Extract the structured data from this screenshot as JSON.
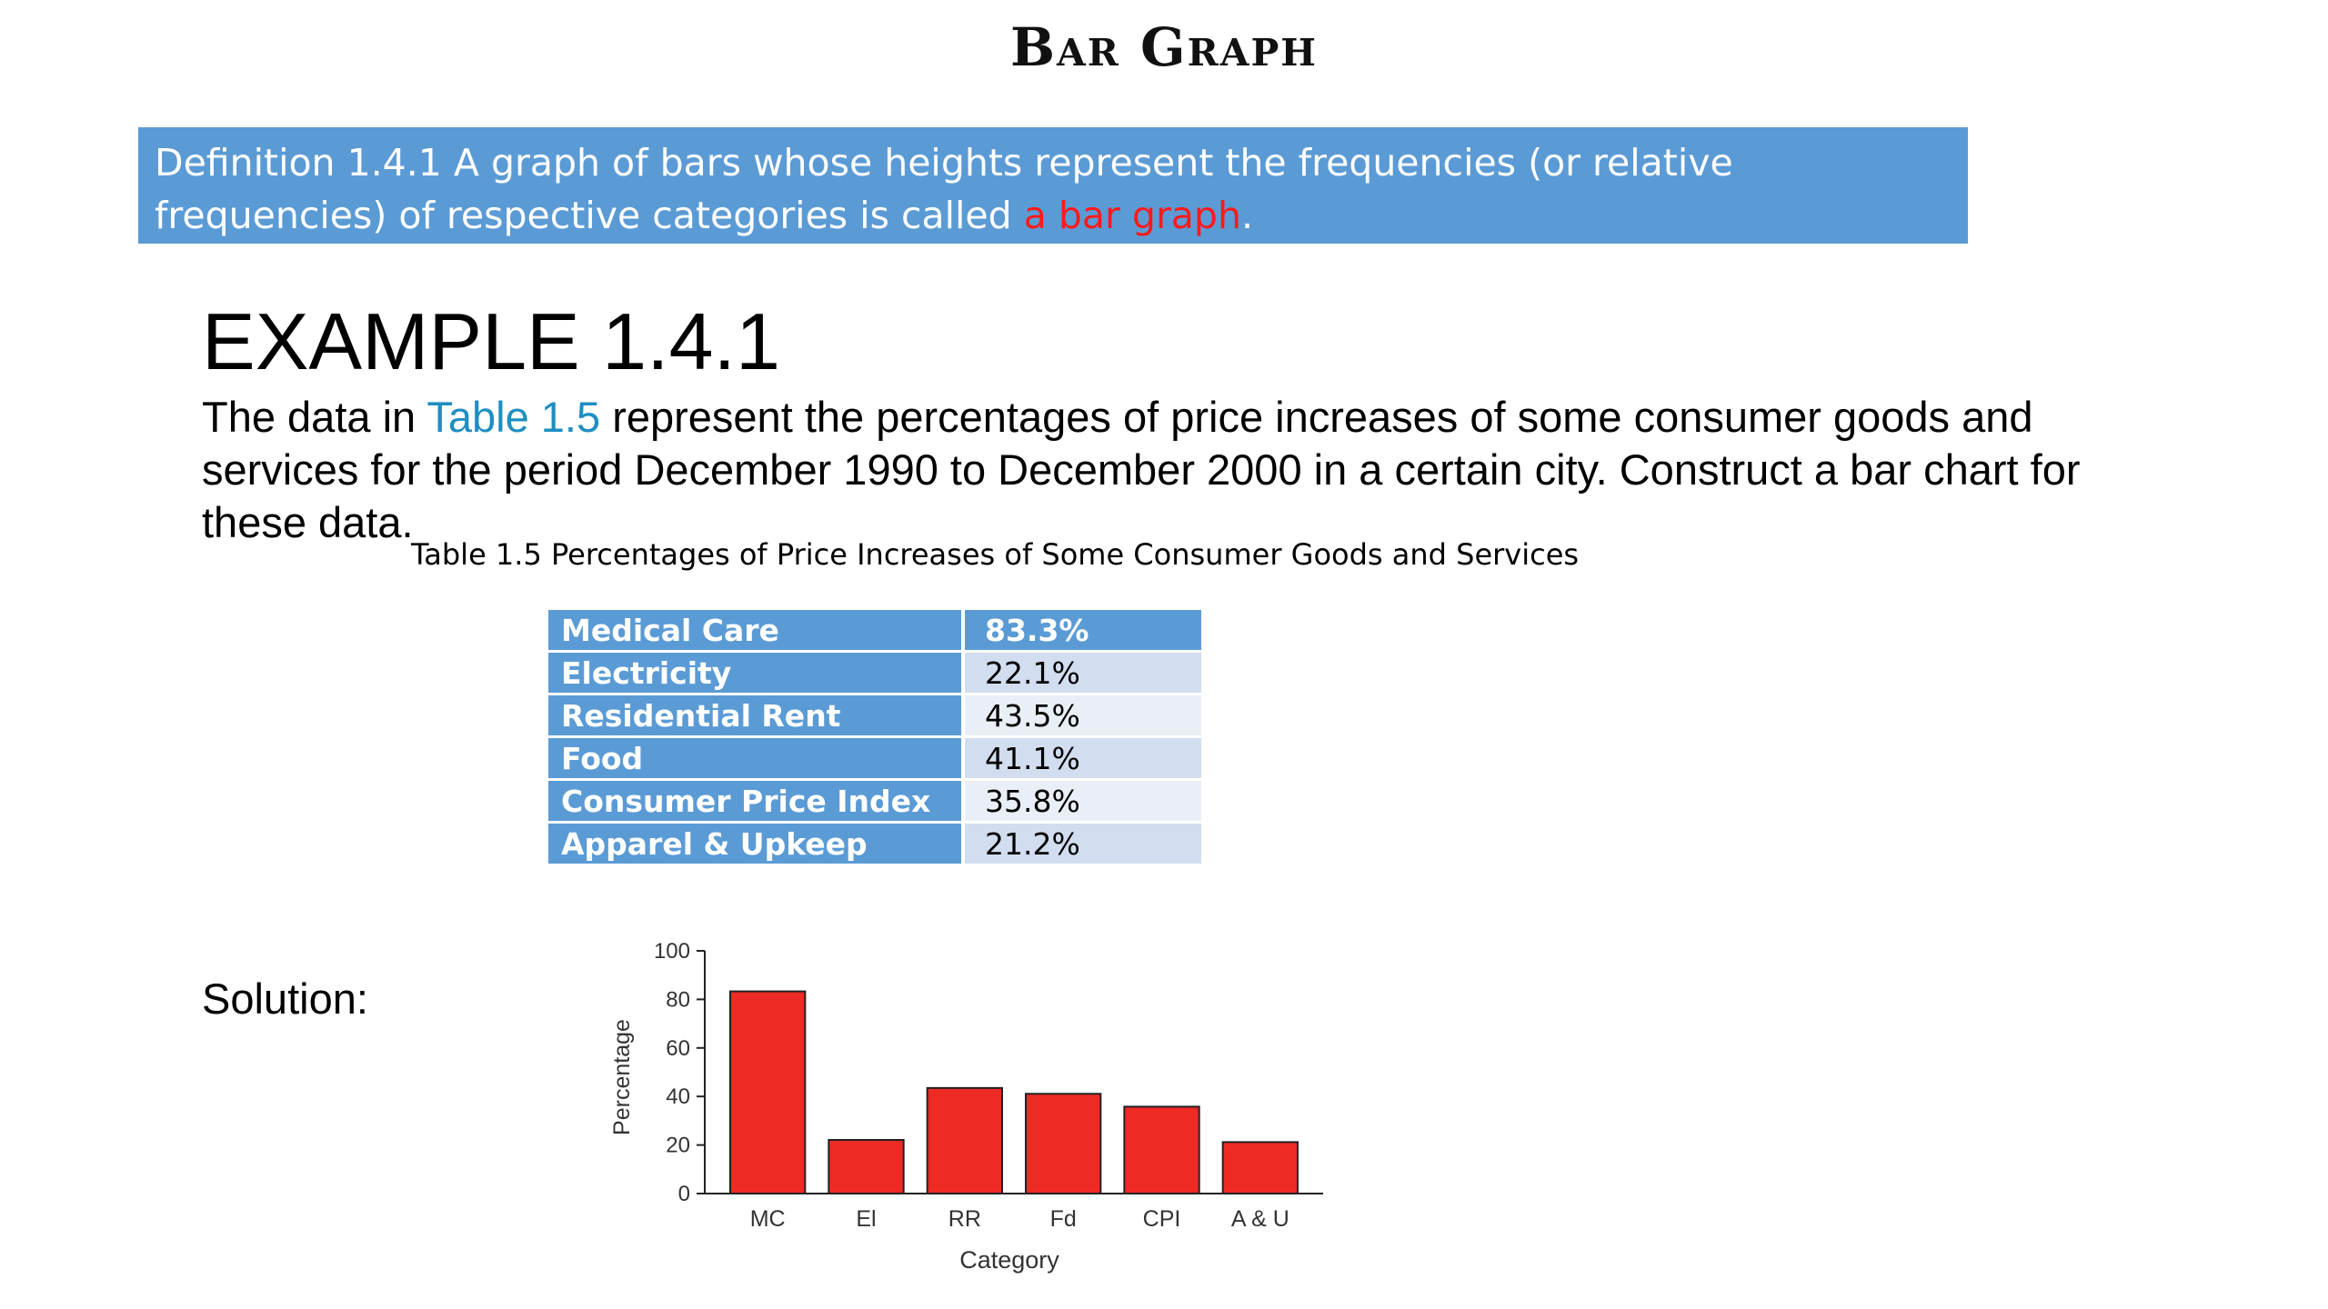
{
  "header": {
    "title": "Bar Graph"
  },
  "definition": {
    "text": "Definition 1.4.1 A graph of bars whose heights represent the frequencies (or relative frequencies) of respective categories is called ",
    "highlight": "a bar graph",
    "end": "."
  },
  "example": {
    "title": "EXAMPLE 1.4.1",
    "text_before": "The data in ",
    "table_ref": "Table 1.5",
    "text_after": " represent the percentages of price increases of some consumer goods and services for the period December 1990 to December 2000 in a certain city. Construct a bar chart for these data."
  },
  "table": {
    "caption": "Table 1.5 Percentages of Price Increases of Some Consumer Goods and Services",
    "rows": [
      {
        "category": "Medical Care",
        "value": "83.3%"
      },
      {
        "category": "Electricity",
        "value": "22.1%"
      },
      {
        "category": "Residential Rent",
        "value": "43.5%"
      },
      {
        "category": "Food",
        "value": "41.1%"
      },
      {
        "category": "Consumer Price Index",
        "value": "35.8%"
      },
      {
        "category": "Apparel & Upkeep",
        "value": "21.2%"
      }
    ]
  },
  "solution": {
    "label": "Solution:"
  },
  "colors": {
    "accent": "#5b9bd5",
    "bar_fill": "#ee2a24",
    "highlight_text": "#ff1a1a",
    "link_text": "#1f8ec2"
  },
  "chart_data": {
    "type": "bar",
    "categories": [
      "MC",
      "El",
      "RR",
      "Fd",
      "CPI",
      "A & U"
    ],
    "values": [
      83.3,
      22.1,
      43.5,
      41.1,
      35.8,
      21.2
    ],
    "xlabel": "Category",
    "ylabel": "Percentage",
    "ylim": [
      0,
      100
    ],
    "yticks": [
      0,
      20,
      40,
      60,
      80,
      100
    ],
    "grid": false,
    "legend": "none"
  }
}
